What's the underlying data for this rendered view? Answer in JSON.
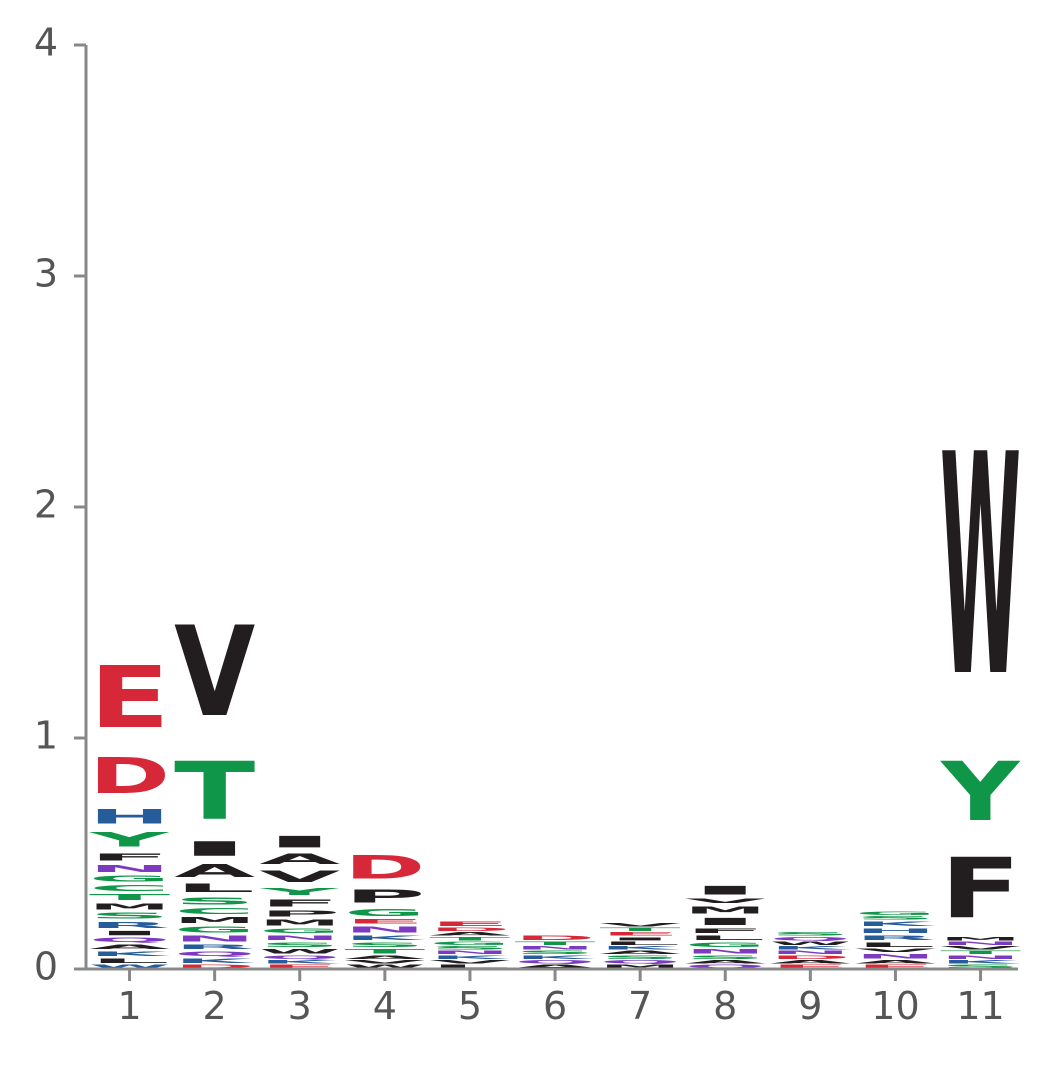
{
  "chart_data": {
    "type": "sequence-logo",
    "title": "",
    "xlabel": "",
    "ylabel": "",
    "ylim": [
      0,
      4
    ],
    "y_ticks": [
      "0",
      "1",
      "2",
      "3",
      "4"
    ],
    "x_ticks": [
      "1",
      "2",
      "3",
      "4",
      "5",
      "6",
      "7",
      "8",
      "9",
      "10",
      "11"
    ],
    "grid": false,
    "legend": "none",
    "colors": {
      "acidic": "#d62839",
      "polar": "#109648",
      "basic": "#255c99",
      "hydrophobic": "#221e1f",
      "neutral": "#7d3ac1",
      "axis": "#888888"
    },
    "positions": [
      {
        "pos": "1",
        "letters": [
          {
            "aa": "W",
            "h": 0.02,
            "color": "#255c99"
          },
          {
            "aa": "L",
            "h": 0.03,
            "color": "#221e1f"
          },
          {
            "aa": "K",
            "h": 0.03,
            "color": "#255c99"
          },
          {
            "aa": "A",
            "h": 0.03,
            "color": "#221e1f"
          },
          {
            "aa": "Q",
            "h": 0.03,
            "color": "#7d3ac1"
          },
          {
            "aa": "I",
            "h": 0.03,
            "color": "#221e1f"
          },
          {
            "aa": "R",
            "h": 0.04,
            "color": "#255c99"
          },
          {
            "aa": "S",
            "h": 0.04,
            "color": "#109648"
          },
          {
            "aa": "M",
            "h": 0.04,
            "color": "#221e1f"
          },
          {
            "aa": "T",
            "h": 0.04,
            "color": "#109648"
          },
          {
            "aa": "C",
            "h": 0.04,
            "color": "#109648"
          },
          {
            "aa": "G",
            "h": 0.04,
            "color": "#109648"
          },
          {
            "aa": "N",
            "h": 0.05,
            "color": "#7d3ac1"
          },
          {
            "aa": "F",
            "h": 0.05,
            "color": "#221e1f"
          },
          {
            "aa": "Y",
            "h": 0.1,
            "color": "#109648"
          },
          {
            "aa": "H",
            "h": 0.1,
            "color": "#255c99"
          },
          {
            "aa": "D",
            "h": 0.25,
            "color": "#d62839"
          },
          {
            "aa": "E",
            "h": 0.43,
            "color": "#d62839"
          }
        ]
      },
      {
        "pos": "2",
        "letters": [
          {
            "aa": "D",
            "h": 0.02,
            "color": "#d62839"
          },
          {
            "aa": "K",
            "h": 0.03,
            "color": "#255c99"
          },
          {
            "aa": "Q",
            "h": 0.03,
            "color": "#7d3ac1"
          },
          {
            "aa": "R",
            "h": 0.03,
            "color": "#255c99"
          },
          {
            "aa": "N",
            "h": 0.04,
            "color": "#7d3ac1"
          },
          {
            "aa": "G",
            "h": 0.04,
            "color": "#109648"
          },
          {
            "aa": "M",
            "h": 0.04,
            "color": "#221e1f"
          },
          {
            "aa": "C",
            "h": 0.04,
            "color": "#109648"
          },
          {
            "aa": "S",
            "h": 0.05,
            "color": "#109648"
          },
          {
            "aa": "L",
            "h": 0.06,
            "color": "#221e1f"
          },
          {
            "aa": "A",
            "h": 0.09,
            "color": "#221e1f"
          },
          {
            "aa": "I",
            "h": 0.1,
            "color": "#221e1f"
          },
          {
            "aa": "T",
            "h": 0.4,
            "color": "#109648"
          },
          {
            "aa": "V",
            "h": 0.63,
            "color": "#221e1f"
          }
        ]
      },
      {
        "pos": "3",
        "letters": [
          {
            "aa": "E",
            "h": 0.02,
            "color": "#d62839"
          },
          {
            "aa": "K",
            "h": 0.02,
            "color": "#255c99"
          },
          {
            "aa": "Q",
            "h": 0.02,
            "color": "#7d3ac1"
          },
          {
            "aa": "W",
            "h": 0.03,
            "color": "#221e1f"
          },
          {
            "aa": "S",
            "h": 0.03,
            "color": "#109648"
          },
          {
            "aa": "N",
            "h": 0.03,
            "color": "#7d3ac1"
          },
          {
            "aa": "G",
            "h": 0.03,
            "color": "#109648"
          },
          {
            "aa": "M",
            "h": 0.04,
            "color": "#221e1f"
          },
          {
            "aa": "P",
            "h": 0.04,
            "color": "#221e1f"
          },
          {
            "aa": "F",
            "h": 0.05,
            "color": "#221e1f"
          },
          {
            "aa": "Y",
            "h": 0.05,
            "color": "#109648"
          },
          {
            "aa": "V",
            "h": 0.08,
            "color": "#221e1f"
          },
          {
            "aa": "A",
            "h": 0.07,
            "color": "#221e1f"
          },
          {
            "aa": "I",
            "h": 0.08,
            "color": "#221e1f"
          }
        ]
      },
      {
        "pos": "4",
        "letters": [
          {
            "aa": "W",
            "h": 0.02,
            "color": "#221e1f"
          },
          {
            "aa": "V",
            "h": 0.02,
            "color": "#221e1f"
          },
          {
            "aa": "A",
            "h": 0.02,
            "color": "#221e1f"
          },
          {
            "aa": "T",
            "h": 0.03,
            "color": "#109648"
          },
          {
            "aa": "S",
            "h": 0.03,
            "color": "#109648"
          },
          {
            "aa": "K",
            "h": 0.03,
            "color": "#255c99"
          },
          {
            "aa": "N",
            "h": 0.04,
            "color": "#7d3ac1"
          },
          {
            "aa": "E",
            "h": 0.03,
            "color": "#d62839"
          },
          {
            "aa": "G",
            "h": 0.05,
            "color": "#109648"
          },
          {
            "aa": "P",
            "h": 0.09,
            "color": "#221e1f"
          },
          {
            "aa": "D",
            "h": 0.16,
            "color": "#d62839"
          }
        ]
      },
      {
        "pos": "5",
        "letters": [
          {
            "aa": "L",
            "h": 0.02,
            "color": "#221e1f"
          },
          {
            "aa": "V",
            "h": 0.02,
            "color": "#221e1f"
          },
          {
            "aa": "K",
            "h": 0.02,
            "color": "#255c99"
          },
          {
            "aa": "N",
            "h": 0.02,
            "color": "#7d3ac1"
          },
          {
            "aa": "S",
            "h": 0.02,
            "color": "#109648"
          },
          {
            "aa": "G",
            "h": 0.02,
            "color": "#109648"
          },
          {
            "aa": "T",
            "h": 0.02,
            "color": "#109648"
          },
          {
            "aa": "A",
            "h": 0.02,
            "color": "#221e1f"
          },
          {
            "aa": "D",
            "h": 0.02,
            "color": "#d62839"
          },
          {
            "aa": "E",
            "h": 0.03,
            "color": "#d62839"
          }
        ]
      },
      {
        "pos": "6",
        "letters": [
          {
            "aa": "A",
            "h": 0.02,
            "color": "#221e1f"
          },
          {
            "aa": "Q",
            "h": 0.02,
            "color": "#7d3ac1"
          },
          {
            "aa": "K",
            "h": 0.02,
            "color": "#255c99"
          },
          {
            "aa": "S",
            "h": 0.02,
            "color": "#109648"
          },
          {
            "aa": "N",
            "h": 0.02,
            "color": "#7d3ac1"
          },
          {
            "aa": "T",
            "h": 0.02,
            "color": "#109648"
          },
          {
            "aa": "D",
            "h": 0.03,
            "color": "#d62839"
          }
        ]
      },
      {
        "pos": "7",
        "letters": [
          {
            "aa": "M",
            "h": 0.02,
            "color": "#221e1f"
          },
          {
            "aa": "Q",
            "h": 0.02,
            "color": "#7d3ac1"
          },
          {
            "aa": "S",
            "h": 0.02,
            "color": "#109648"
          },
          {
            "aa": "A",
            "h": 0.02,
            "color": "#221e1f"
          },
          {
            "aa": "K",
            "h": 0.02,
            "color": "#255c99"
          },
          {
            "aa": "L",
            "h": 0.02,
            "color": "#221e1f"
          },
          {
            "aa": "I",
            "h": 0.02,
            "color": "#221e1f"
          },
          {
            "aa": "E",
            "h": 0.02,
            "color": "#d62839"
          },
          {
            "aa": "T",
            "h": 0.02,
            "color": "#109648"
          },
          {
            "aa": "V",
            "h": 0.02,
            "color": "#221e1f"
          }
        ]
      },
      {
        "pos": "8",
        "letters": [
          {
            "aa": "Q",
            "h": 0.02,
            "color": "#7d3ac1"
          },
          {
            "aa": "A",
            "h": 0.02,
            "color": "#221e1f"
          },
          {
            "aa": "S",
            "h": 0.02,
            "color": "#109648"
          },
          {
            "aa": "N",
            "h": 0.03,
            "color": "#7d3ac1"
          },
          {
            "aa": "G",
            "h": 0.03,
            "color": "#109648"
          },
          {
            "aa": "L",
            "h": 0.03,
            "color": "#221e1f"
          },
          {
            "aa": "F",
            "h": 0.03,
            "color": "#221e1f"
          },
          {
            "aa": "I",
            "h": 0.05,
            "color": "#221e1f"
          },
          {
            "aa": "M",
            "h": 0.05,
            "color": "#221e1f"
          },
          {
            "aa": "V",
            "h": 0.03,
            "color": "#221e1f"
          },
          {
            "aa": "I",
            "h": 0.06,
            "color": "#221e1f"
          }
        ]
      },
      {
        "pos": "9",
        "letters": [
          {
            "aa": "E",
            "h": 0.02,
            "color": "#d62839"
          },
          {
            "aa": "A",
            "h": 0.02,
            "color": "#221e1f"
          },
          {
            "aa": "D",
            "h": 0.02,
            "color": "#d62839"
          },
          {
            "aa": "N",
            "h": 0.02,
            "color": "#7d3ac1"
          },
          {
            "aa": "K",
            "h": 0.02,
            "color": "#255c99"
          },
          {
            "aa": "W",
            "h": 0.02,
            "color": "#221e1f"
          },
          {
            "aa": "Q",
            "h": 0.02,
            "color": "#7d3ac1"
          },
          {
            "aa": "S",
            "h": 0.02,
            "color": "#109648"
          }
        ]
      },
      {
        "pos": "10",
        "letters": [
          {
            "aa": "E",
            "h": 0.02,
            "color": "#d62839"
          },
          {
            "aa": "A",
            "h": 0.02,
            "color": "#221e1f"
          },
          {
            "aa": "N",
            "h": 0.03,
            "color": "#7d3ac1"
          },
          {
            "aa": "V",
            "h": 0.02,
            "color": "#221e1f"
          },
          {
            "aa": "L",
            "h": 0.03,
            "color": "#221e1f"
          },
          {
            "aa": "R",
            "h": 0.03,
            "color": "#255c99"
          },
          {
            "aa": "H",
            "h": 0.03,
            "color": "#255c99"
          },
          {
            "aa": "K",
            "h": 0.03,
            "color": "#255c99"
          },
          {
            "aa": "S",
            "h": 0.02,
            "color": "#109648"
          },
          {
            "aa": "G",
            "h": 0.02,
            "color": "#109648"
          }
        ]
      },
      {
        "pos": "11",
        "letters": [
          {
            "aa": "S",
            "h": 0.02,
            "color": "#109648"
          },
          {
            "aa": "K",
            "h": 0.02,
            "color": "#255c99"
          },
          {
            "aa": "N",
            "h": 0.02,
            "color": "#7d3ac1"
          },
          {
            "aa": "T",
            "h": 0.02,
            "color": "#109648"
          },
          {
            "aa": "V",
            "h": 0.02,
            "color": "#221e1f"
          },
          {
            "aa": "N",
            "h": 0.02,
            "color": "#7d3ac1"
          },
          {
            "aa": "M",
            "h": 0.02,
            "color": "#221e1f"
          },
          {
            "aa": "F",
            "h": 0.42,
            "color": "#221e1f"
          },
          {
            "aa": "Y",
            "h": 0.41,
            "color": "#109648"
          },
          {
            "aa": "W",
            "h": 1.54,
            "color": "#221e1f"
          }
        ]
      }
    ]
  }
}
